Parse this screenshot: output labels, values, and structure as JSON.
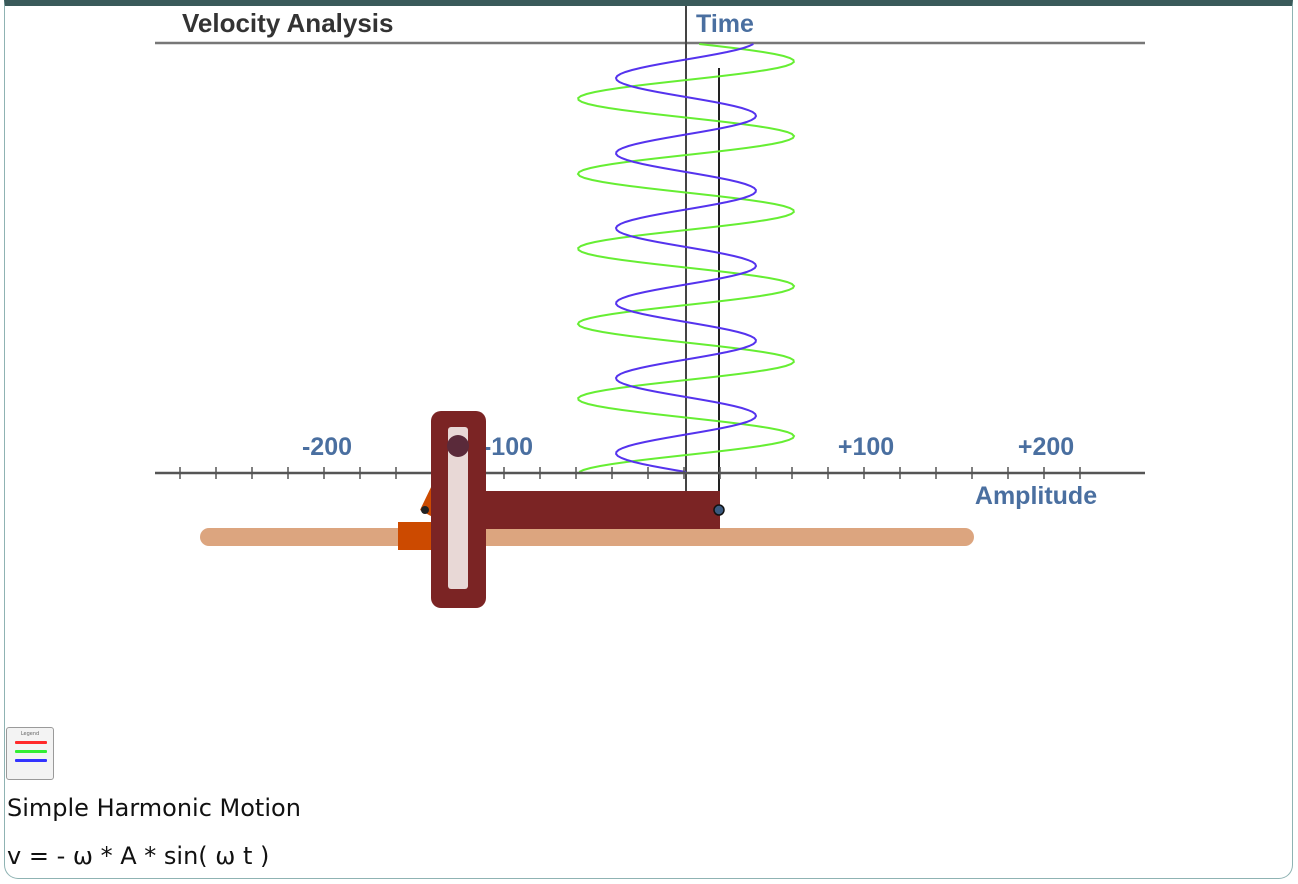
{
  "panel": {
    "title": "Velocity Analysis",
    "time_label": "Time",
    "amplitude_label": "Amplitude",
    "tick_labels": [
      "-200",
      "-100",
      "+100",
      "+200"
    ]
  },
  "legend": {
    "button_title": "Legend",
    "colors": [
      "#ff2a2a",
      "#33ee33",
      "#3333ff"
    ]
  },
  "curves": {
    "blue_color": "#5533ee",
    "green_color": "#66ee33",
    "blue_amplitude": 70,
    "green_amplitude": 110
  },
  "mechanism": {
    "rod_color": "#dca57f",
    "yoke_color": "#7b2424",
    "slot_color": "#e8d8d6",
    "crank_color": "#cc4a00",
    "pin_color": "#5a2a3a"
  },
  "captions": {
    "title": "Simple Harmonic Motion",
    "formula": "v = - ω * A * sin( ω t )"
  }
}
